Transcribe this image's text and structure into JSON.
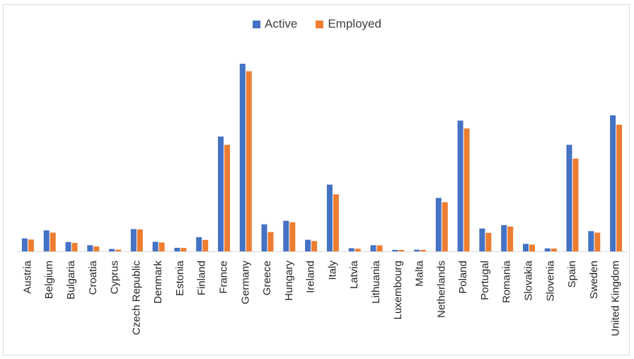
{
  "chart_data": {
    "type": "bar",
    "title": "",
    "xlabel": "",
    "ylabel": "",
    "ylim": [
      0,
      100
    ],
    "grid": false,
    "legend_position": "top",
    "categories": [
      "Austria",
      "Belgium",
      "Bulgaria",
      "Croatia",
      "Cyprus",
      "Czech Republic",
      "Denmark",
      "Estonia",
      "Finland",
      "France",
      "Germany",
      "Greece",
      "Hungary",
      "Ireland",
      "Italy",
      "Latvia",
      "Lithuania",
      "Luxembourg",
      "Malta",
      "Netherlands",
      "Poland",
      "Portugal",
      "Romania",
      "Slovakia",
      "Slovenia",
      "Spain",
      "Sweden",
      "United Kingdom"
    ],
    "series": [
      {
        "name": "Active",
        "color": "#4472C4",
        "values": [
          6.9,
          11.2,
          5.0,
          3.3,
          1.3,
          11.9,
          5.1,
          1.9,
          7.6,
          61.2,
          100.0,
          14.4,
          16.3,
          6.2,
          35.6,
          1.7,
          3.3,
          0.8,
          0.9,
          28.5,
          69.7,
          12.2,
          14.0,
          4.0,
          1.6,
          56.8,
          10.8,
          72.5
        ]
      },
      {
        "name": "Employed",
        "color": "#ED7D31",
        "values": [
          6.3,
          10.0,
          4.5,
          2.6,
          0.9,
          11.7,
          4.7,
          1.8,
          6.1,
          56.8,
          96.0,
          10.3,
          15.5,
          5.5,
          30.4,
          1.4,
          3.2,
          0.8,
          0.8,
          26.2,
          65.5,
          9.9,
          13.2,
          3.6,
          1.5,
          49.4,
          10.0,
          67.5
        ]
      }
    ]
  }
}
